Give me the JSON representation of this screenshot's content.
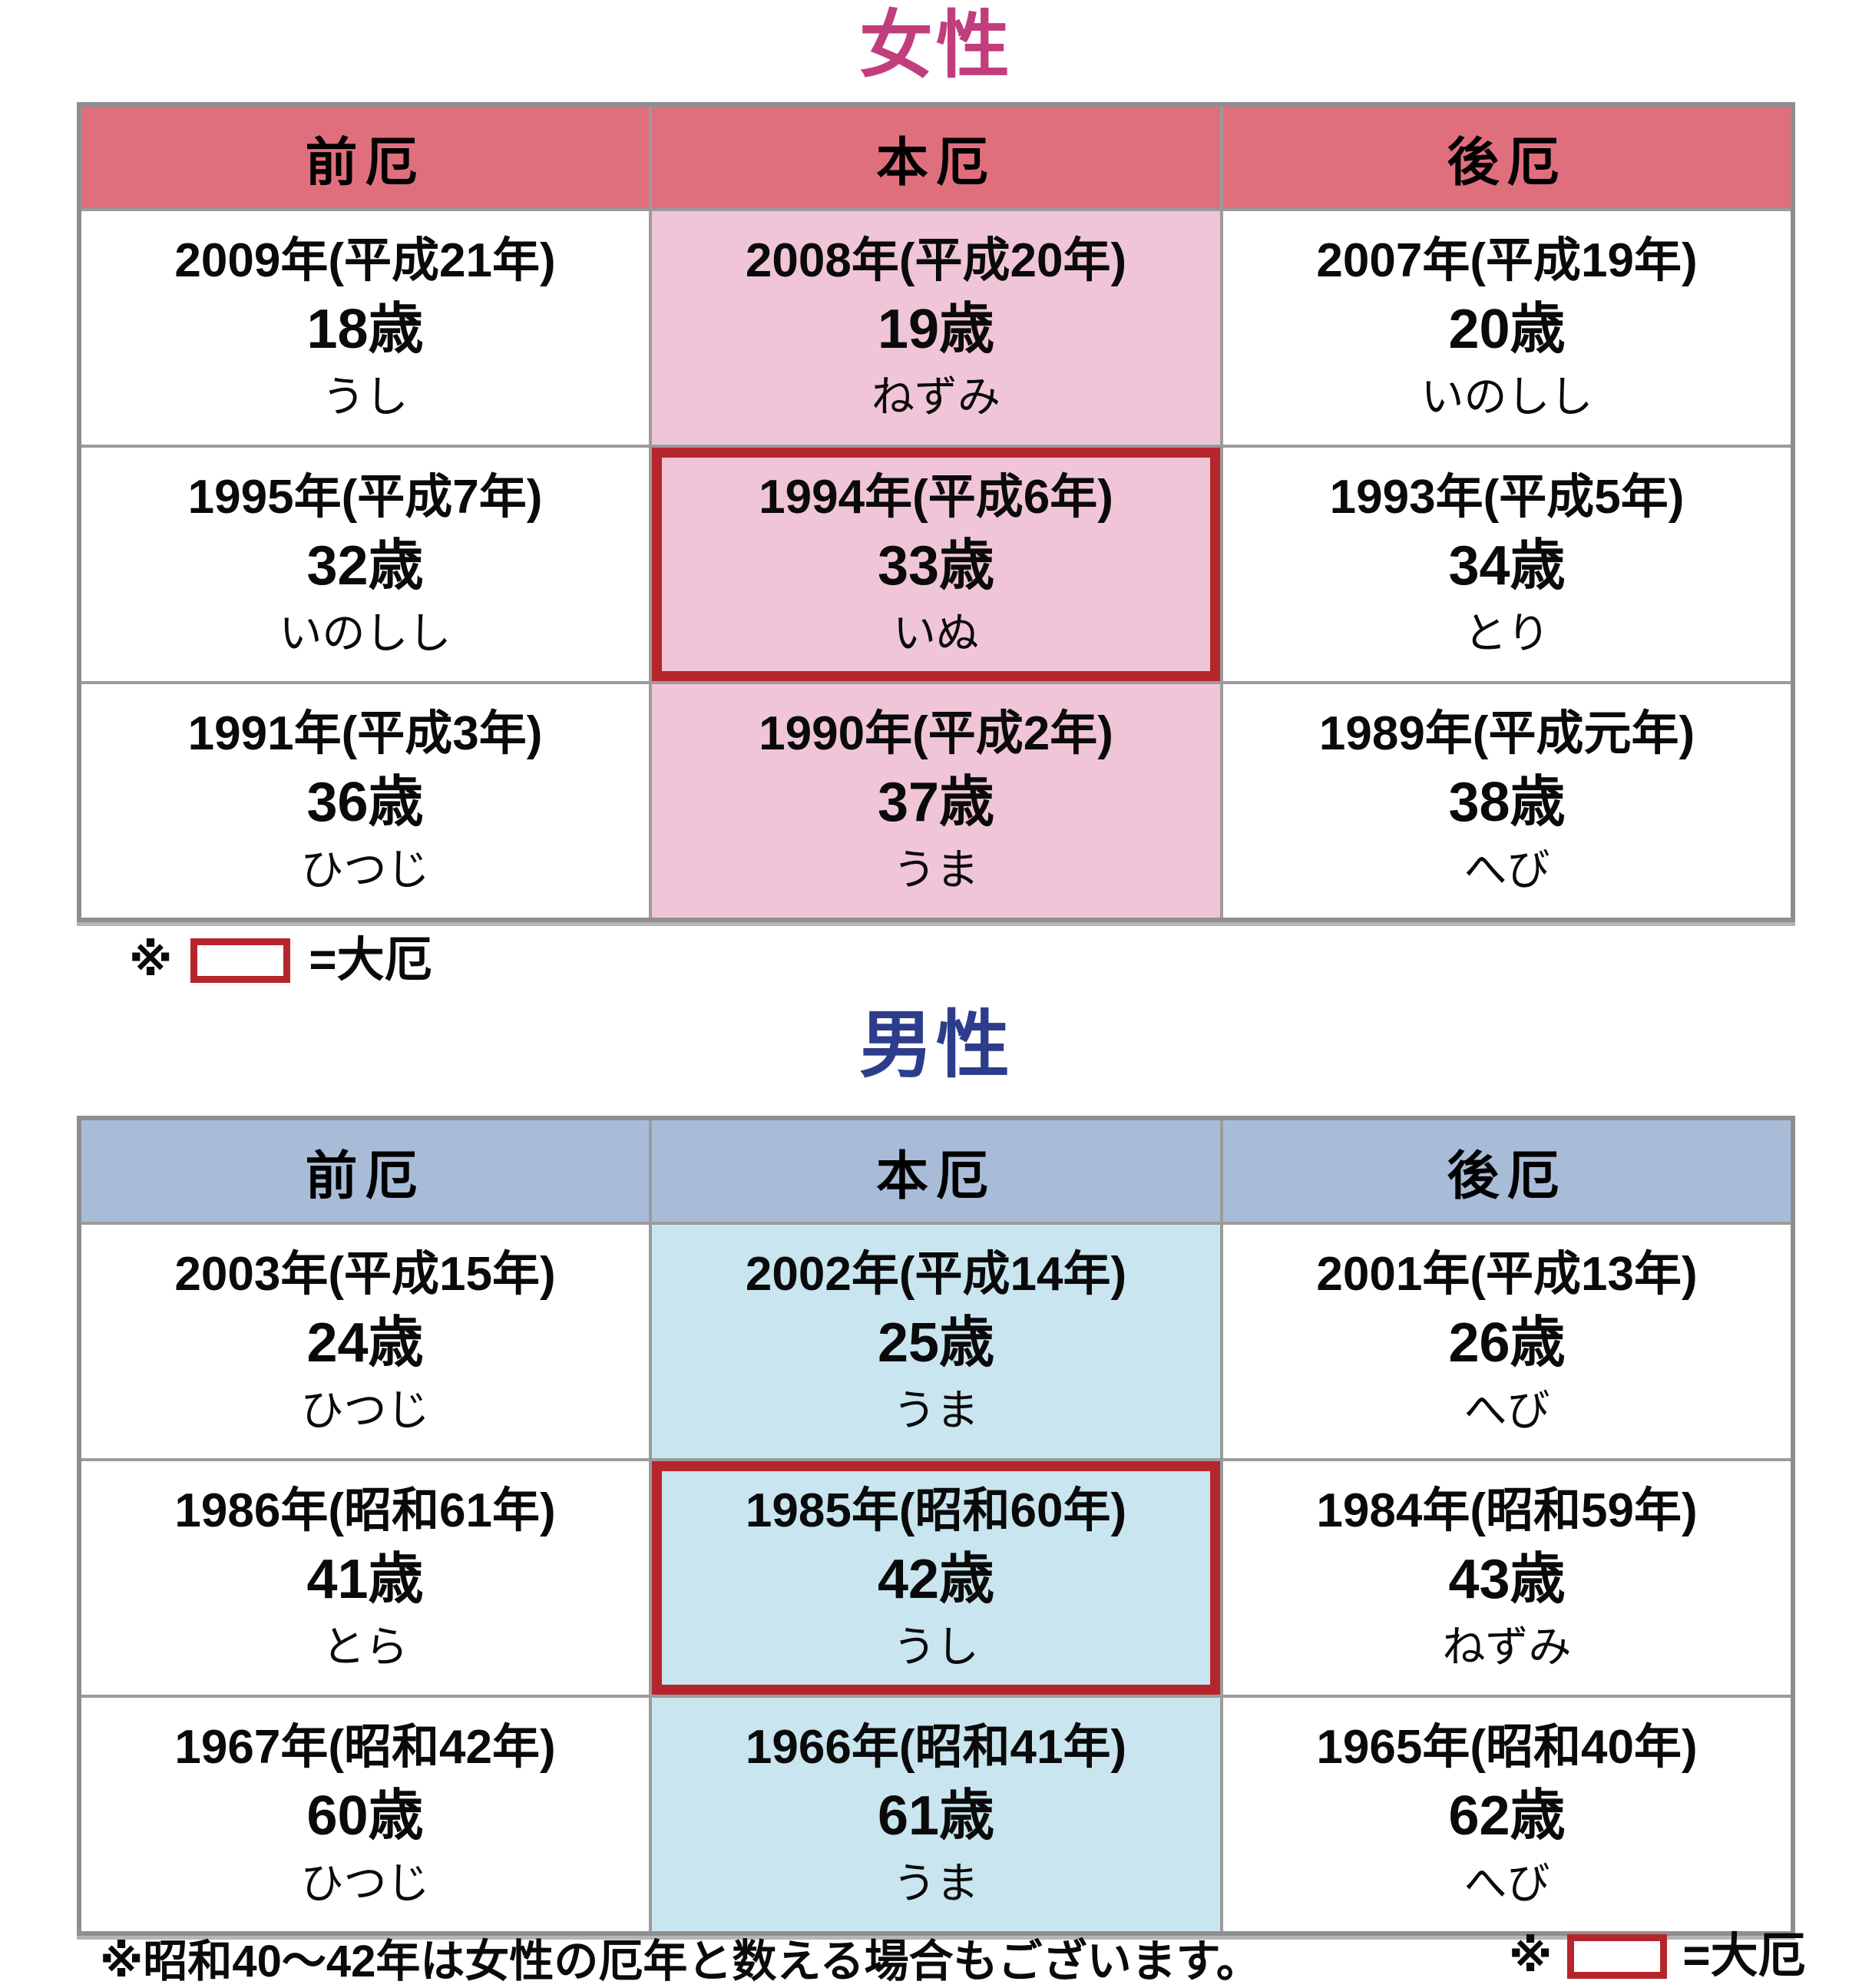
{
  "female": {
    "title": "女性",
    "colors": {
      "title": "#C13E7D",
      "header_bg": "#E06F7E",
      "highlight_bg": "#F0C5D7",
      "daiyaku_border": "#B5262C",
      "grid": "#9B9B9B"
    },
    "columns": [
      "前厄",
      "本厄",
      "後厄"
    ],
    "rows": [
      {
        "cells": [
          {
            "year": "2009年(平成21年)",
            "age": "18歳",
            "zodiac": "うし"
          },
          {
            "year": "2008年(平成20年)",
            "age": "19歳",
            "zodiac": "ねずみ",
            "highlight": true
          },
          {
            "year": "2007年(平成19年)",
            "age": "20歳",
            "zodiac": "いのしし"
          }
        ]
      },
      {
        "cells": [
          {
            "year": "1995年(平成7年)",
            "age": "32歳",
            "zodiac": "いのしし"
          },
          {
            "year": "1994年(平成6年)",
            "age": "33歳",
            "zodiac": "いぬ",
            "highlight": true,
            "daiyaku": true
          },
          {
            "year": "1993年(平成5年)",
            "age": "34歳",
            "zodiac": "とり"
          }
        ]
      },
      {
        "cells": [
          {
            "year": "1991年(平成3年)",
            "age": "36歳",
            "zodiac": "ひつじ"
          },
          {
            "year": "1990年(平成2年)",
            "age": "37歳",
            "zodiac": "うま",
            "highlight": true
          },
          {
            "year": "1989年(平成元年)",
            "age": "38歳",
            "zodiac": "へび"
          }
        ]
      }
    ],
    "legend": {
      "symbol": "※",
      "label": "=大厄"
    }
  },
  "male": {
    "title": "男性",
    "colors": {
      "title": "#2D3D8C",
      "header_bg": "#A8BCD8",
      "highlight_bg": "#C9E5EF",
      "daiyaku_border": "#B5262C"
    },
    "columns": [
      "前厄",
      "本厄",
      "後厄"
    ],
    "rows": [
      {
        "cells": [
          {
            "year": "2003年(平成15年)",
            "age": "24歳",
            "zodiac": "ひつじ"
          },
          {
            "year": "2002年(平成14年)",
            "age": "25歳",
            "zodiac": "うま",
            "highlight": true
          },
          {
            "year": "2001年(平成13年)",
            "age": "26歳",
            "zodiac": "へび"
          }
        ]
      },
      {
        "cells": [
          {
            "year": "1986年(昭和61年)",
            "age": "41歳",
            "zodiac": "とら"
          },
          {
            "year": "1985年(昭和60年)",
            "age": "42歳",
            "zodiac": "うし",
            "highlight": true,
            "daiyaku": true
          },
          {
            "year": "1984年(昭和59年)",
            "age": "43歳",
            "zodiac": "ねずみ"
          }
        ]
      },
      {
        "cells": [
          {
            "year": "1967年(昭和42年)",
            "age": "60歳",
            "zodiac": "ひつじ"
          },
          {
            "year": "1966年(昭和41年)",
            "age": "61歳",
            "zodiac": "うま",
            "highlight": true
          },
          {
            "year": "1965年(昭和40年)",
            "age": "62歳",
            "zodiac": "へび"
          }
        ]
      }
    ]
  },
  "bottom_note": {
    "text": "※昭和40～42年は女性の厄年と数える場合もございます。",
    "symbol": "※",
    "label": "=大厄"
  }
}
